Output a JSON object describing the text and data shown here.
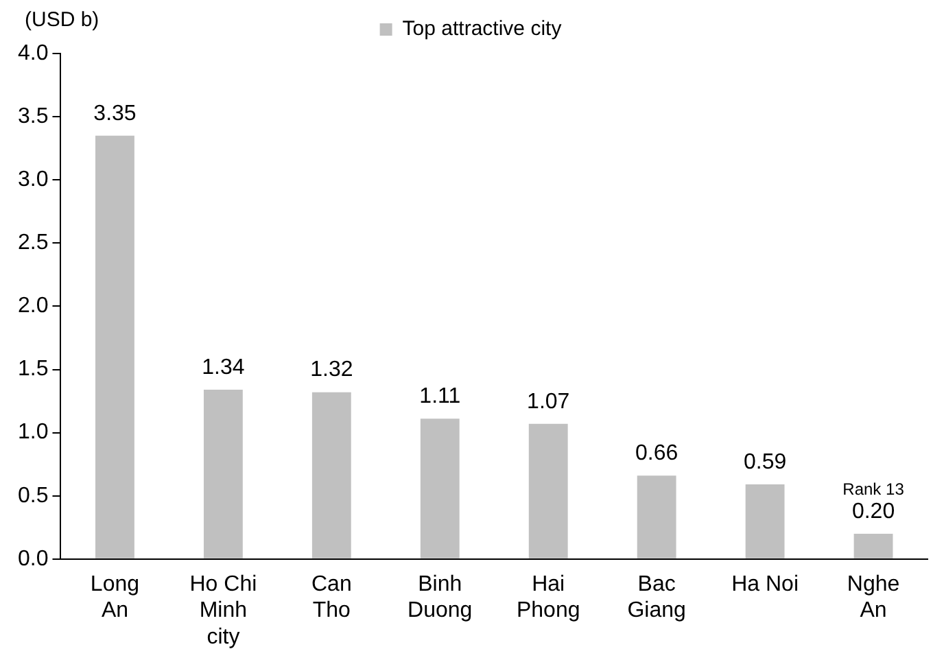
{
  "chart_data": {
    "type": "bar",
    "ylabel": "(USD b)",
    "categories": [
      "Long An",
      "Ho Chi Minh city",
      "Can Tho",
      "Binh Duong",
      "Hai Phong",
      "Bac Giang",
      "Ha Noi",
      "Nghe An"
    ],
    "series": [
      {
        "name": "Top attractive city",
        "color": "#c0c0c0",
        "values": [
          3.35,
          1.34,
          1.32,
          1.11,
          1.07,
          0.66,
          0.59,
          0.2
        ],
        "value_labels": [
          "3.35",
          "1.34",
          "1.32",
          "1.11",
          "1.07",
          "0.66",
          "0.59",
          "0.20"
        ]
      }
    ],
    "ylim": [
      0,
      4
    ],
    "yticks": [
      {
        "value": 0,
        "label": "0.0"
      },
      {
        "value": 0.5,
        "label": "0.5"
      },
      {
        "value": 1,
        "label": "1.0"
      },
      {
        "value": 1.5,
        "label": "1.5"
      },
      {
        "value": 2,
        "label": "2.0"
      },
      {
        "value": 2.5,
        "label": "2.5"
      },
      {
        "value": 3,
        "label": "3.0"
      },
      {
        "value": 3.5,
        "label": "3.5"
      },
      {
        "value": 4,
        "label": "4.0"
      }
    ],
    "grid": false,
    "legend": "top",
    "annotations": [
      {
        "text": "Rank 13",
        "x": "Nghe An",
        "y": 0.2
      }
    ]
  }
}
